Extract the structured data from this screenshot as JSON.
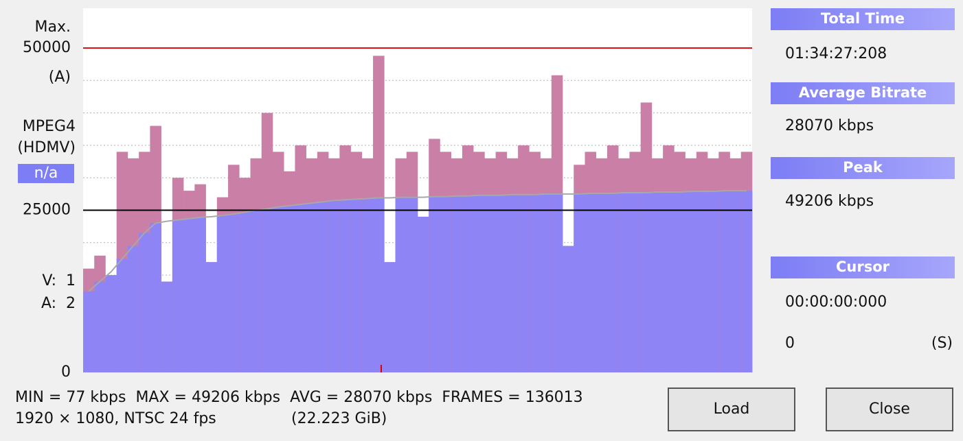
{
  "chart_data": {
    "type": "bar",
    "series": [
      {
        "color": "#c97fa6",
        "values": [
          16000,
          18000,
          15000,
          34000,
          33000,
          34000,
          38000,
          14000,
          30000,
          28000,
          29000,
          17000,
          27000,
          32000,
          30000,
          33000,
          40000,
          34000,
          31000,
          35000,
          33000,
          34000,
          33000,
          35000,
          34000,
          33000,
          48800,
          17000,
          33000,
          34000,
          24000,
          36000,
          34000,
          33000,
          35000,
          34000,
          33000,
          34000,
          33000,
          35000,
          34000,
          33000,
          45800,
          19500,
          32000,
          34000,
          33000,
          35000,
          33000,
          34000,
          41600,
          33000,
          35000,
          34000,
          33000,
          34000,
          33000,
          34000,
          33000,
          34000
        ]
      },
      {
        "color": "#8f84f5",
        "values": [
          12500,
          14000,
          15500,
          17500,
          19500,
          21500,
          23000,
          23300,
          23500,
          23700,
          23900,
          24000,
          24200,
          24400,
          24700,
          25000,
          25200,
          25500,
          25700,
          25900,
          26100,
          26300,
          26500,
          26600,
          26700,
          26800,
          26900,
          26900,
          27000,
          27000,
          27000,
          27100,
          27100,
          27200,
          27200,
          27300,
          27300,
          27300,
          27400,
          27400,
          27400,
          27500,
          27500,
          27500,
          27500,
          27600,
          27600,
          27600,
          27700,
          27700,
          27700,
          27800,
          27800,
          27800,
          27900,
          27900,
          27900,
          28000,
          28000,
          28000
        ]
      }
    ],
    "ylim": [
      0,
      50000
    ],
    "yticks": [
      0,
      25000,
      50000
    ],
    "ytick_line_colors": [
      null,
      "#000000",
      "#e01010"
    ],
    "grid_y": [
      5000,
      10000,
      15000,
      20000,
      30000,
      35000,
      40000,
      45000
    ]
  },
  "axis_labels": {
    "max": "Max.",
    "channel": "(A)",
    "codec": "MPEG4",
    "format": "(HDMV)",
    "status": "n/a",
    "video": "V:  1",
    "audio": "A:  2"
  },
  "panel": {
    "total_time_title": "Total Time",
    "total_time": "01:34:27:208",
    "avg_title": "Average Bitrate",
    "avg": "28070 kbps",
    "peak_title": "Peak",
    "peak": "49206 kbps",
    "cursor_title": "Cursor",
    "cursor_time": "00:00:00:000",
    "cursor_value": "0",
    "cursor_unit": "(S)"
  },
  "stats": {
    "line1": "MIN = 77 kbps  MAX = 49206 kbps  AVG = 28070 kbps  FRAMES = 136013",
    "line2": "1920 × 1080, NTSC 24 fps",
    "size": "(22.223 GiB)"
  },
  "buttons": [
    "Load",
    "Close"
  ]
}
